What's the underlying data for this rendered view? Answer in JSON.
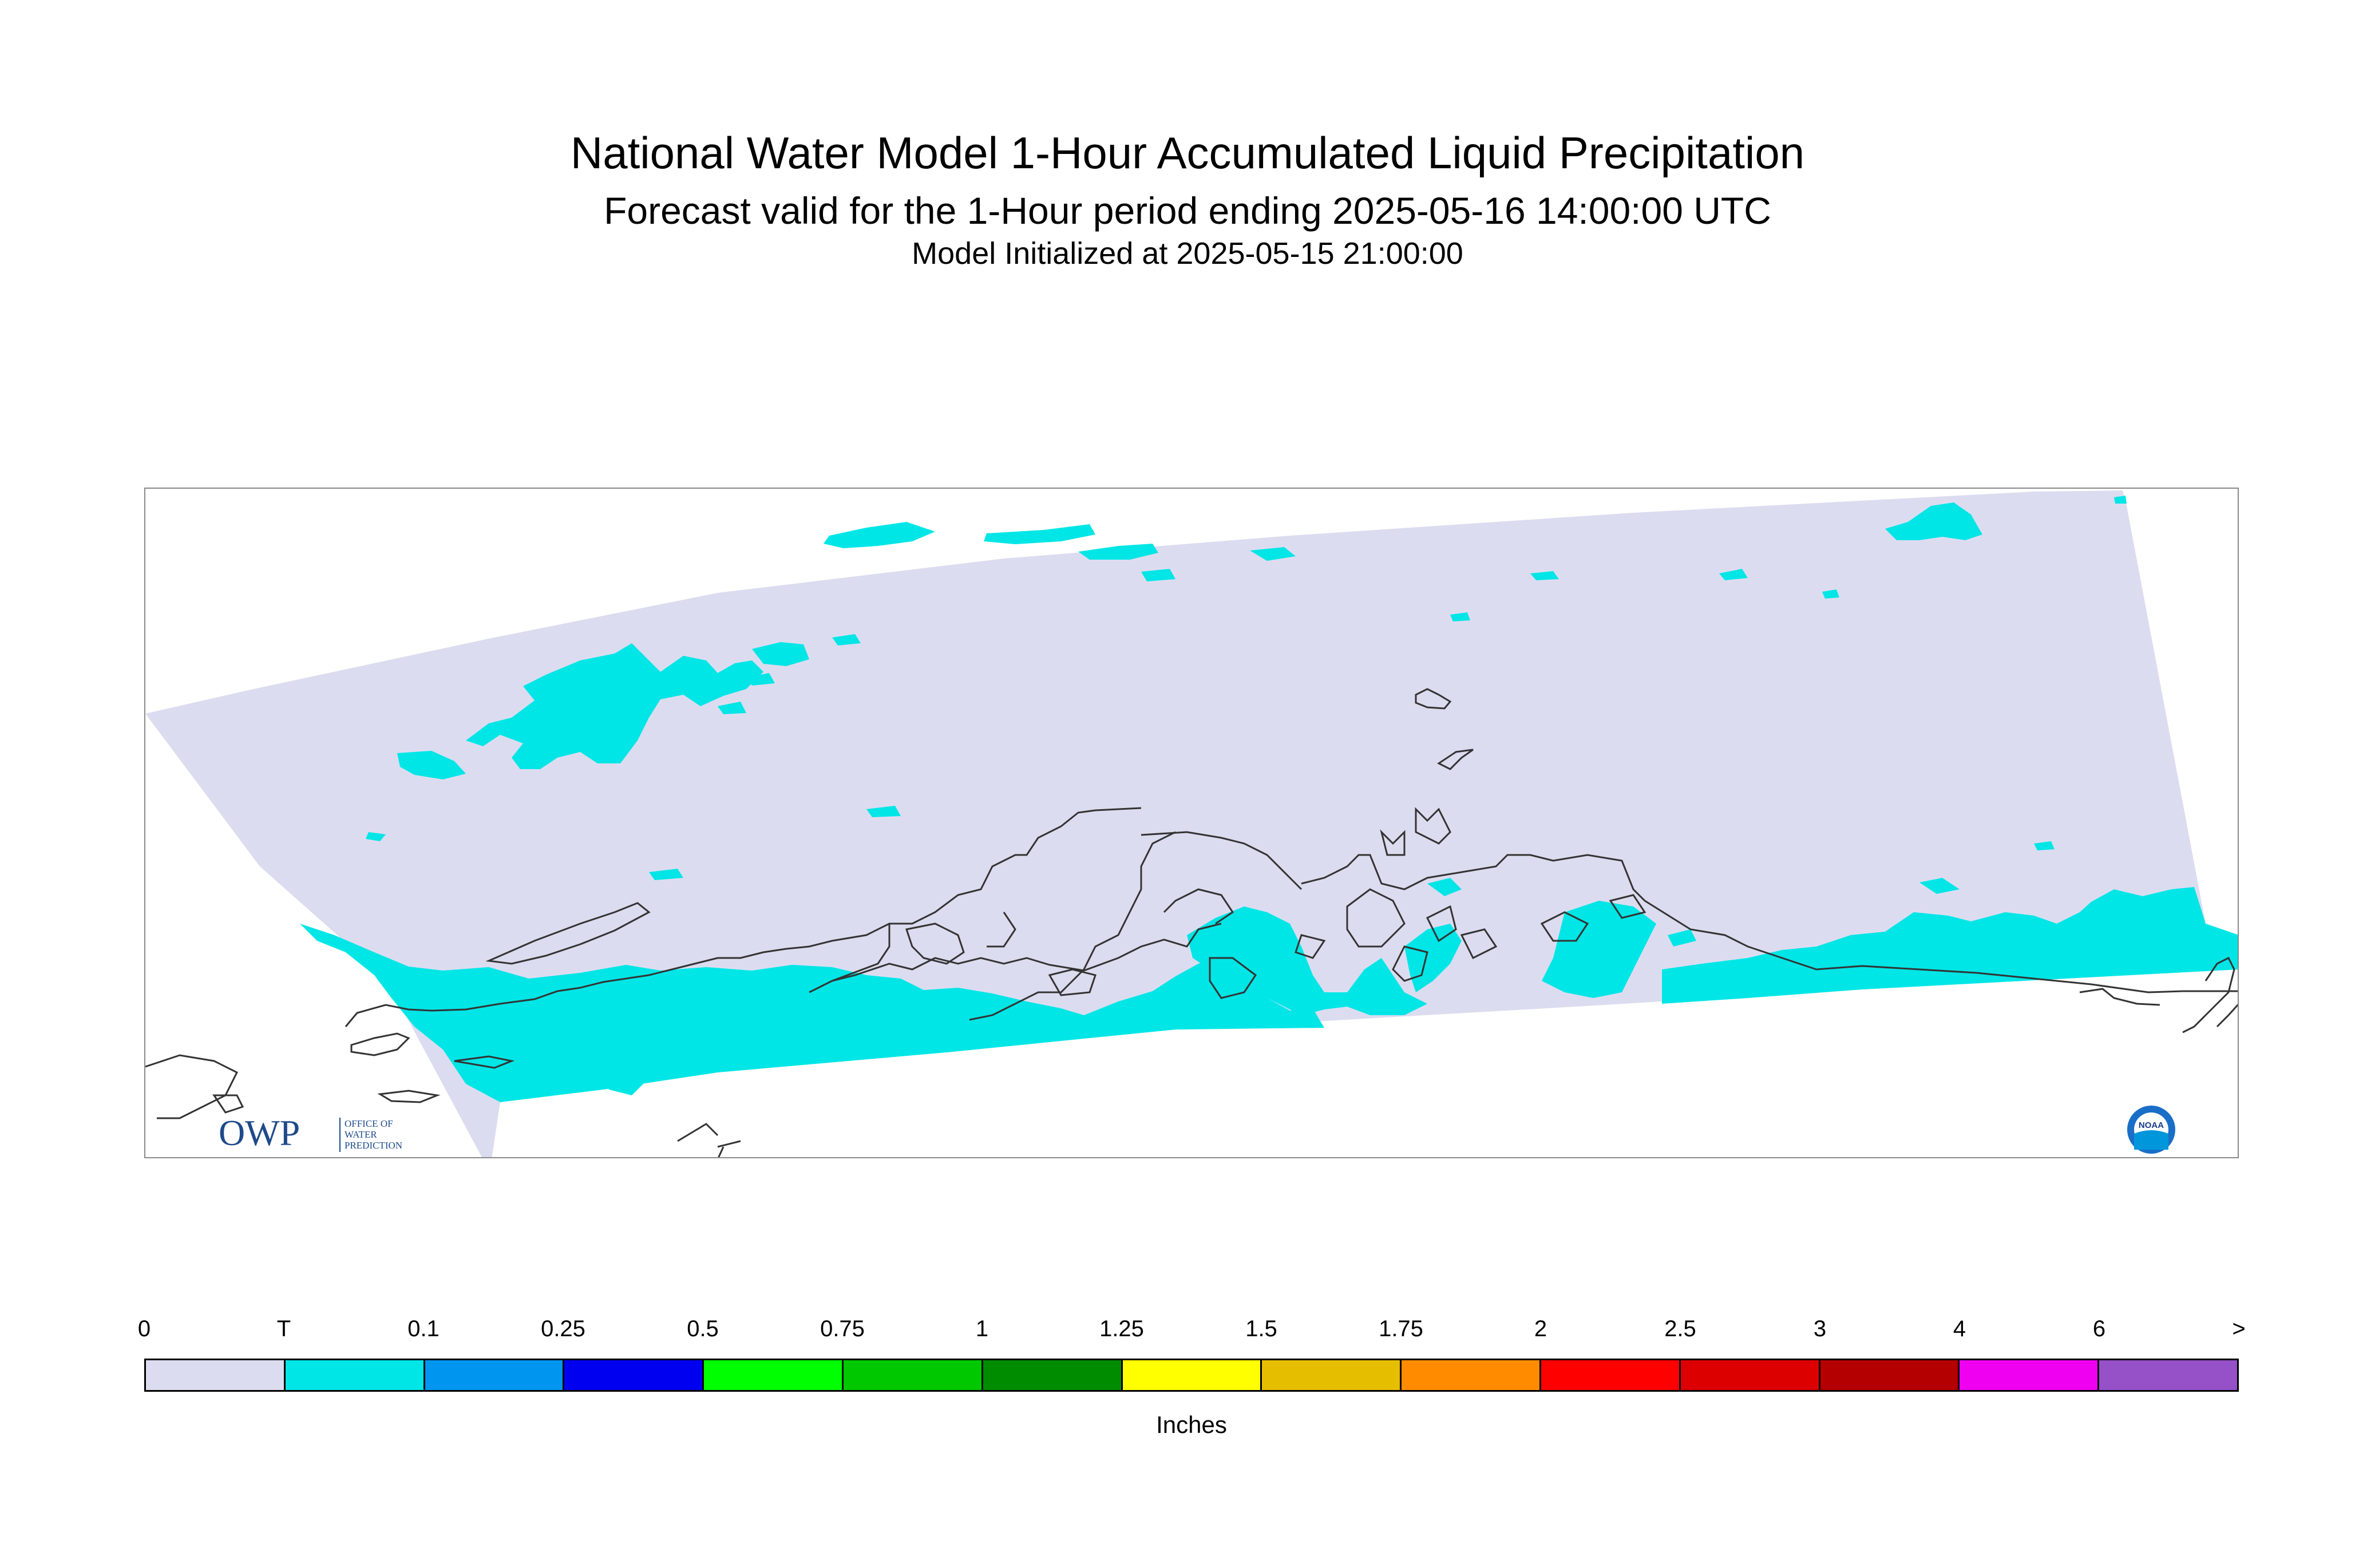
{
  "title": {
    "main": "National Water Model 1-Hour Accumulated Liquid Precipitation",
    "sub": "Forecast valid for the 1-Hour period ending 2025-05-16 14:00:00 UTC",
    "init": "Model Initialized at 2025-05-15 21:00:00"
  },
  "map": {
    "domain_color": "#dcdcf0",
    "precip_color": "#00e6e6",
    "coastline_color": "#333333"
  },
  "logos": {
    "owp": {
      "mark": "OWP",
      "text": "OFFICE OF WATER PREDICTION"
    },
    "noaa": {
      "text": "NOAA"
    }
  },
  "legend": {
    "labels": [
      "0",
      "T",
      "0.1",
      "0.25",
      "0.5",
      "0.75",
      "1",
      "1.25",
      "1.5",
      "1.75",
      "2",
      "2.5",
      "3",
      "4",
      "6",
      ">"
    ],
    "colors": [
      "#dcdcf0",
      "#00e6e6",
      "#0096f0",
      "#0000f0",
      "#00ff00",
      "#00c800",
      "#008c00",
      "#ffff00",
      "#e6be00",
      "#ff8c00",
      "#ff0000",
      "#dc0000",
      "#b40000",
      "#f000f0",
      "#9650c8"
    ],
    "units": "Inches"
  }
}
